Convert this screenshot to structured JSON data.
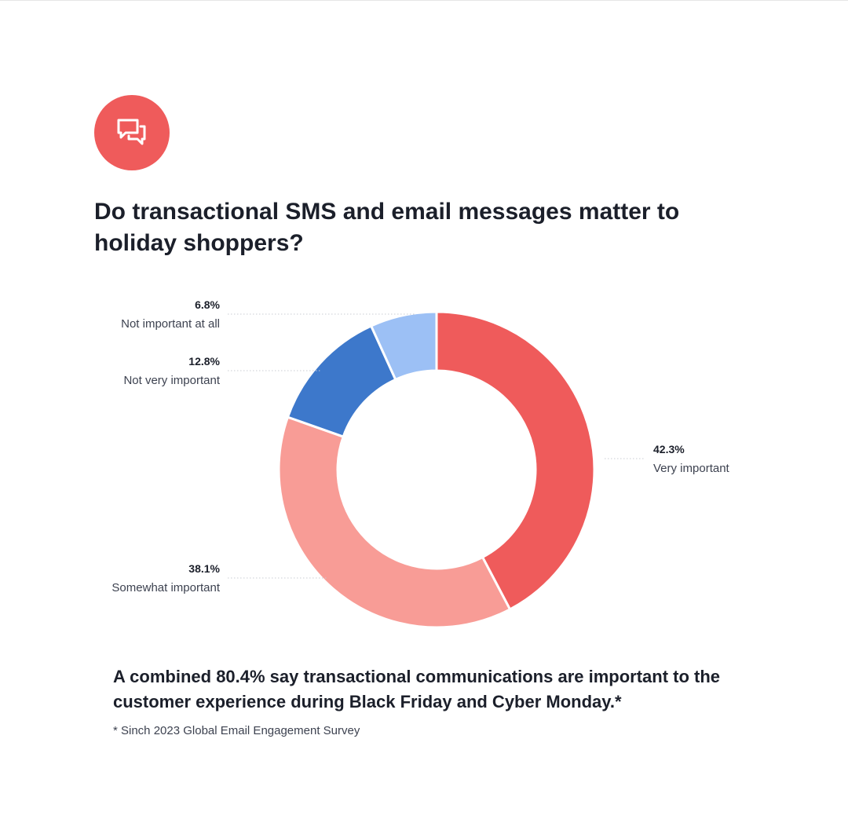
{
  "badge": {
    "icon": "chat-bubbles-icon",
    "color": "#ef5b5b"
  },
  "title": "Do transactional SMS and email messages matter to holiday shoppers?",
  "chart_data": {
    "type": "pie",
    "variant": "donut",
    "title": "Do transactional SMS and email messages matter to holiday shoppers?",
    "unit": "%",
    "categories": [
      "Very important",
      "Somewhat important",
      "Not very important",
      "Not important at all"
    ],
    "values": [
      42.3,
      38.1,
      12.8,
      6.8
    ],
    "value_labels": [
      "42.3%",
      "38.1%",
      "12.8%",
      "6.8%"
    ],
    "colors": [
      "#ef5b5b",
      "#f89c96",
      "#3d78cb",
      "#9cc0f5"
    ],
    "legend": "none",
    "direct_labels": true
  },
  "footer": {
    "note": "A combined 80.4% say transactional communications are important to the customer experience during Black Friday and Cyber Monday.*",
    "source": "* Sinch 2023 Global Email Engagement Survey"
  }
}
